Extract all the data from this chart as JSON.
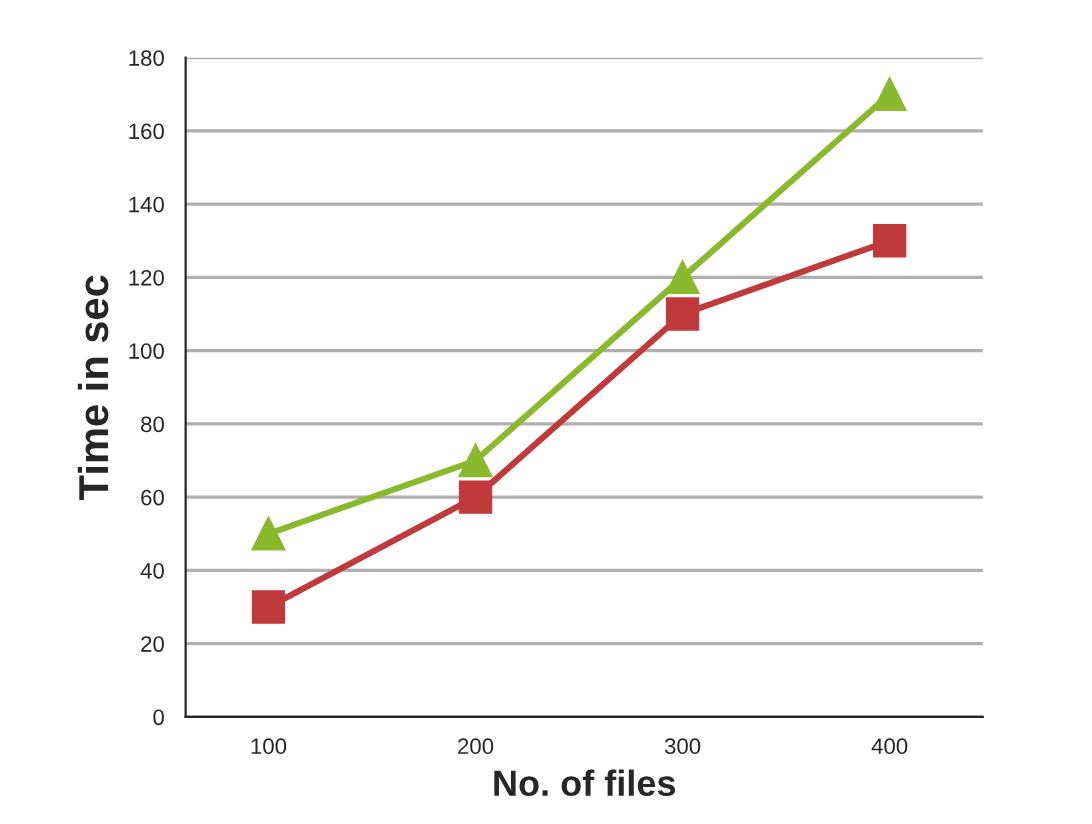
{
  "chart_data": {
    "type": "line",
    "xlabel": "No. of files",
    "ylabel": "Time in sec",
    "categories": [
      "100",
      "200",
      "300",
      "400"
    ],
    "series": [
      {
        "color": "#c0393b",
        "marker": "square",
        "values": [
          30,
          60,
          110,
          130
        ]
      },
      {
        "color": "#8ab92d",
        "marker": "triangle",
        "values": [
          50,
          70,
          120,
          170
        ]
      }
    ],
    "ylim": [
      0,
      180
    ],
    "yticks": [
      0,
      20,
      40,
      60,
      80,
      100,
      120,
      140,
      160,
      180
    ],
    "grid": "y"
  }
}
